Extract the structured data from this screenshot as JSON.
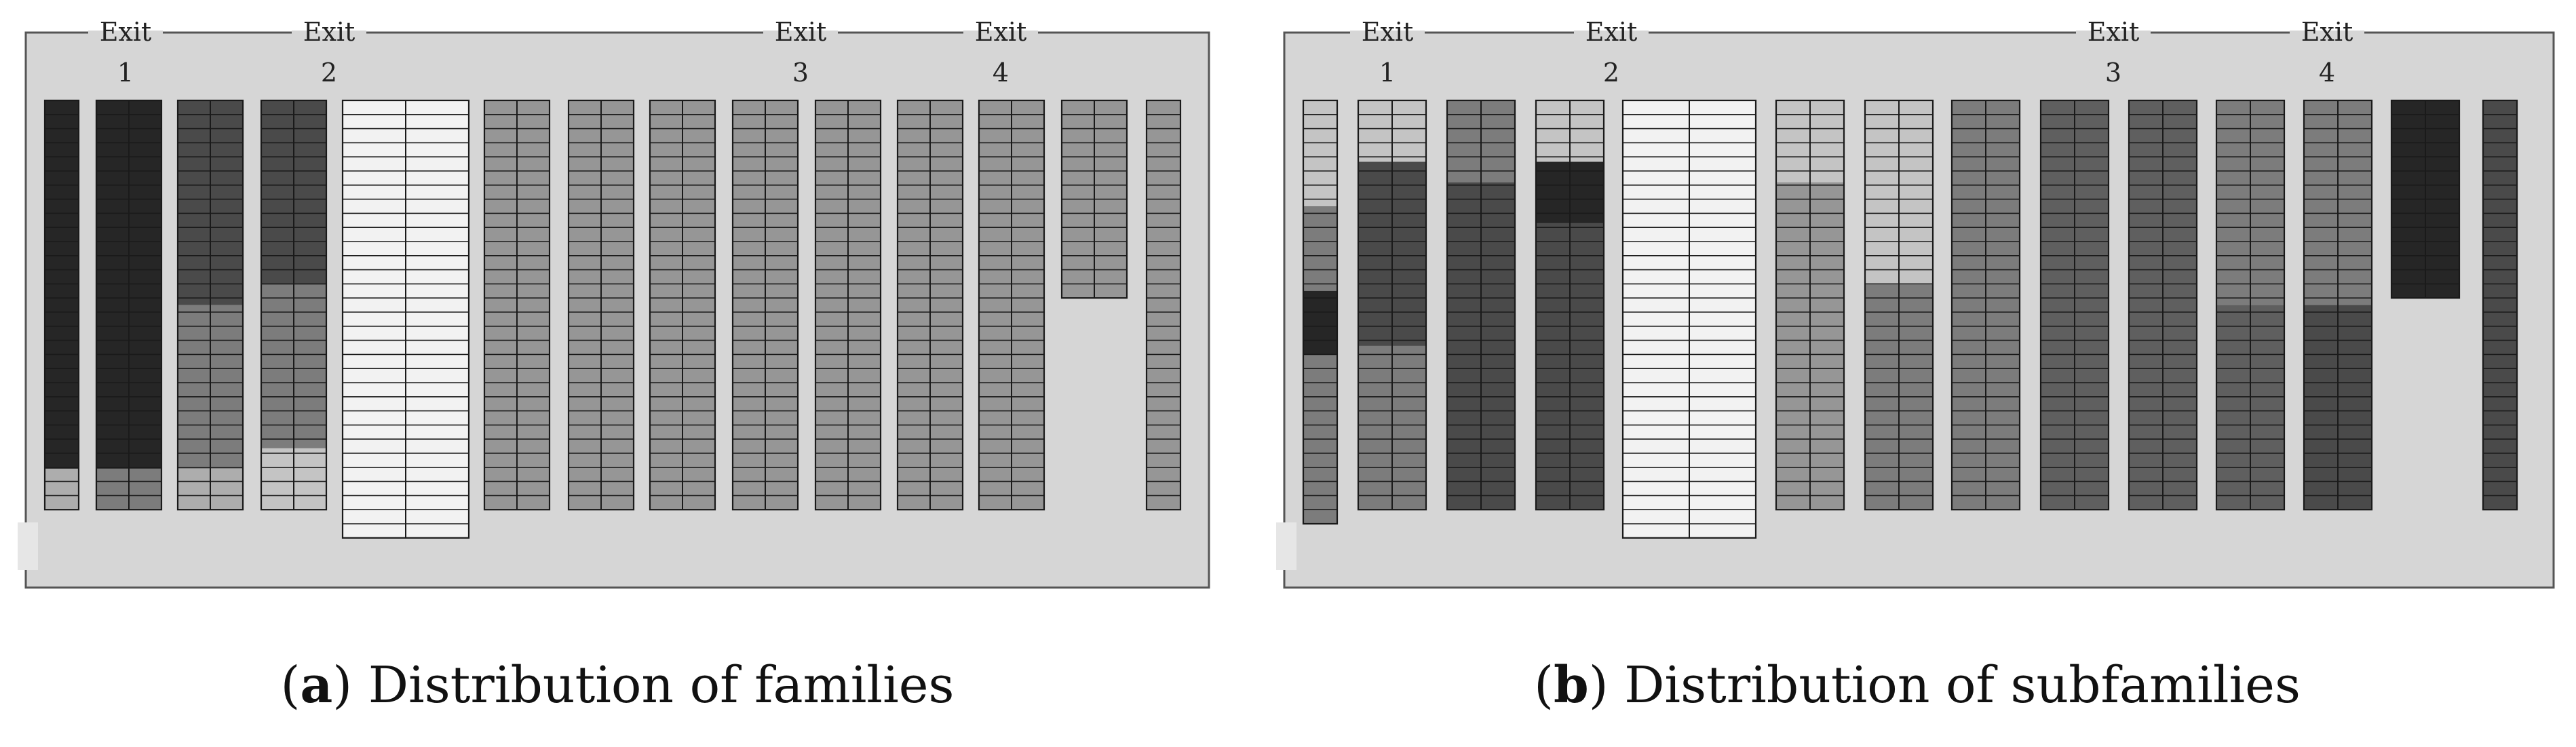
{
  "panels": [
    {
      "id": "a",
      "letter": "a",
      "caption_open": "(",
      "caption_close": ")",
      "caption_text": " Distribution of families",
      "exits": [
        {
          "word": "Exit",
          "number": "1"
        },
        {
          "word": "Exit",
          "number": "2"
        },
        {
          "word": "Exit",
          "number": "3"
        },
        {
          "word": "Exit",
          "number": "4"
        }
      ]
    },
    {
      "id": "b",
      "letter": "b",
      "caption_open": "(",
      "caption_close": ")",
      "caption_text": " Distribution of subfamilies",
      "exits": [
        {
          "word": "Exit",
          "number": "1"
        },
        {
          "word": "Exit",
          "number": "2"
        },
        {
          "word": "Exit",
          "number": "3"
        },
        {
          "word": "Exit",
          "number": "4"
        }
      ]
    }
  ],
  "colors": {
    "background": "#d6d6d6",
    "frame": "#555555",
    "grid_line": "#1a1a1a",
    "very_dark": "#262626",
    "dark": "#4a4a4a",
    "mid_dark": "#5f5f5f",
    "mid": "#7c7c7c",
    "medium": "#969696",
    "light": "#adadad",
    "very_light": "#c4c4c4",
    "white": "#f2f2f2"
  }
}
